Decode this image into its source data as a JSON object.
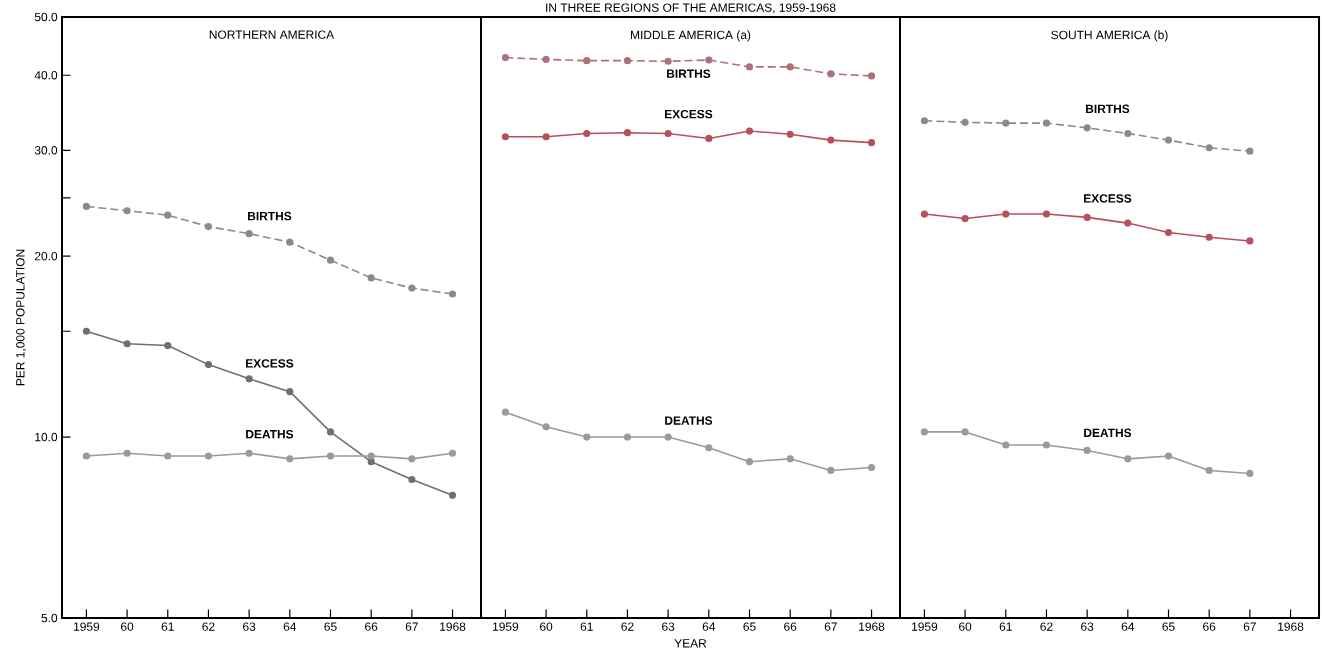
{
  "chart_data": [
    {
      "type": "line",
      "title": "NORTHERN AMERICA",
      "ylabel": "PER 1,000 POPULATION",
      "log": "y",
      "marker": "circle",
      "legend": false,
      "grid": false,
      "categories": [
        "1959",
        "60",
        "61",
        "62",
        "63",
        "64",
        "65",
        "66",
        "67",
        "1968"
      ],
      "ylim": [
        5,
        50
      ],
      "yticks": [
        {
          "value": 5,
          "label": "5.0"
        },
        {
          "value": 10,
          "label": "10.0"
        },
        {
          "value": 15,
          "label": null
        },
        {
          "value": 20,
          "label": "20.0"
        },
        {
          "value": 25,
          "label": null
        },
        {
          "value": 30,
          "label": "30.0"
        },
        {
          "value": 40,
          "label": "40.0"
        },
        {
          "value": 50,
          "label": "50.0"
        }
      ],
      "series": [
        {
          "name": "BIRTHS",
          "color": "#8a8a8a",
          "line_style": "dashed",
          "values": [
            24.2,
            23.8,
            23.4,
            22.4,
            21.8,
            21.1,
            19.7,
            18.4,
            17.7,
            17.3
          ]
        },
        {
          "name": "EXCESS",
          "color": "#707070",
          "line_style": "solid",
          "values": [
            15.0,
            14.3,
            14.2,
            13.2,
            12.5,
            11.9,
            10.2,
            9.1,
            8.5,
            8.0
          ]
        },
        {
          "name": "DEATHS",
          "color": "#9a9a9a",
          "line_style": "solid",
          "values": [
            9.3,
            9.4,
            9.3,
            9.3,
            9.4,
            9.2,
            9.3,
            9.3,
            9.2,
            9.4
          ]
        }
      ]
    },
    {
      "type": "line",
      "title": "MIDDLE AMERICA (a)",
      "xlabel": "YEAR",
      "annotations": [
        "IN THREE REGIONS OF THE AMERICAS, 1959-1968"
      ],
      "log": "y",
      "marker": "circle",
      "legend": false,
      "grid": false,
      "tick_labels": "x",
      "categories": [
        "1959",
        "60",
        "61",
        "62",
        "63",
        "64",
        "65",
        "66",
        "67",
        "1968"
      ],
      "ylim": [
        5,
        50
      ],
      "series": [
        {
          "name": "BIRTHS",
          "color": "#b07078",
          "line_style": "dashed",
          "values": [
            42.8,
            42.5,
            42.3,
            42.3,
            42.2,
            42.4,
            41.3,
            41.3,
            40.2,
            39.9
          ]
        },
        {
          "name": "EXCESS",
          "color": "#b8505c",
          "line_style": "solid",
          "values": [
            31.6,
            31.6,
            32.0,
            32.1,
            32.0,
            31.4,
            32.3,
            31.9,
            31.2,
            30.9
          ]
        },
        {
          "name": "DEATHS",
          "color": "#9a9a9a",
          "line_style": "solid",
          "values": [
            11.0,
            10.4,
            10.0,
            10.0,
            10.0,
            9.6,
            9.1,
            9.2,
            8.8,
            8.9
          ]
        }
      ]
    },
    {
      "type": "line",
      "title": "SOUTH AMERICA (b)",
      "log": "y",
      "marker": "circle",
      "legend": false,
      "grid": false,
      "tick_labels": "x",
      "categories": [
        "1959",
        "60",
        "61",
        "62",
        "63",
        "64",
        "65",
        "66",
        "67",
        "1968"
      ],
      "ylim": [
        5,
        50
      ],
      "series": [
        {
          "name": "BIRTHS",
          "color": "#8a8a8a",
          "line_style": "dashed",
          "values": [
            33.6,
            33.4,
            33.3,
            33.3,
            32.7,
            32.0,
            31.2,
            30.3,
            29.9,
            null
          ]
        },
        {
          "name": "EXCESS",
          "color": "#b8505c",
          "line_style": "solid",
          "values": [
            23.5,
            23.1,
            23.5,
            23.5,
            23.2,
            22.7,
            21.9,
            21.5,
            21.2,
            null
          ]
        },
        {
          "name": "DEATHS",
          "color": "#9a9a9a",
          "line_style": "solid",
          "values": [
            10.2,
            10.2,
            9.7,
            9.7,
            9.5,
            9.2,
            9.3,
            8.8,
            8.7,
            null
          ]
        }
      ]
    }
  ]
}
